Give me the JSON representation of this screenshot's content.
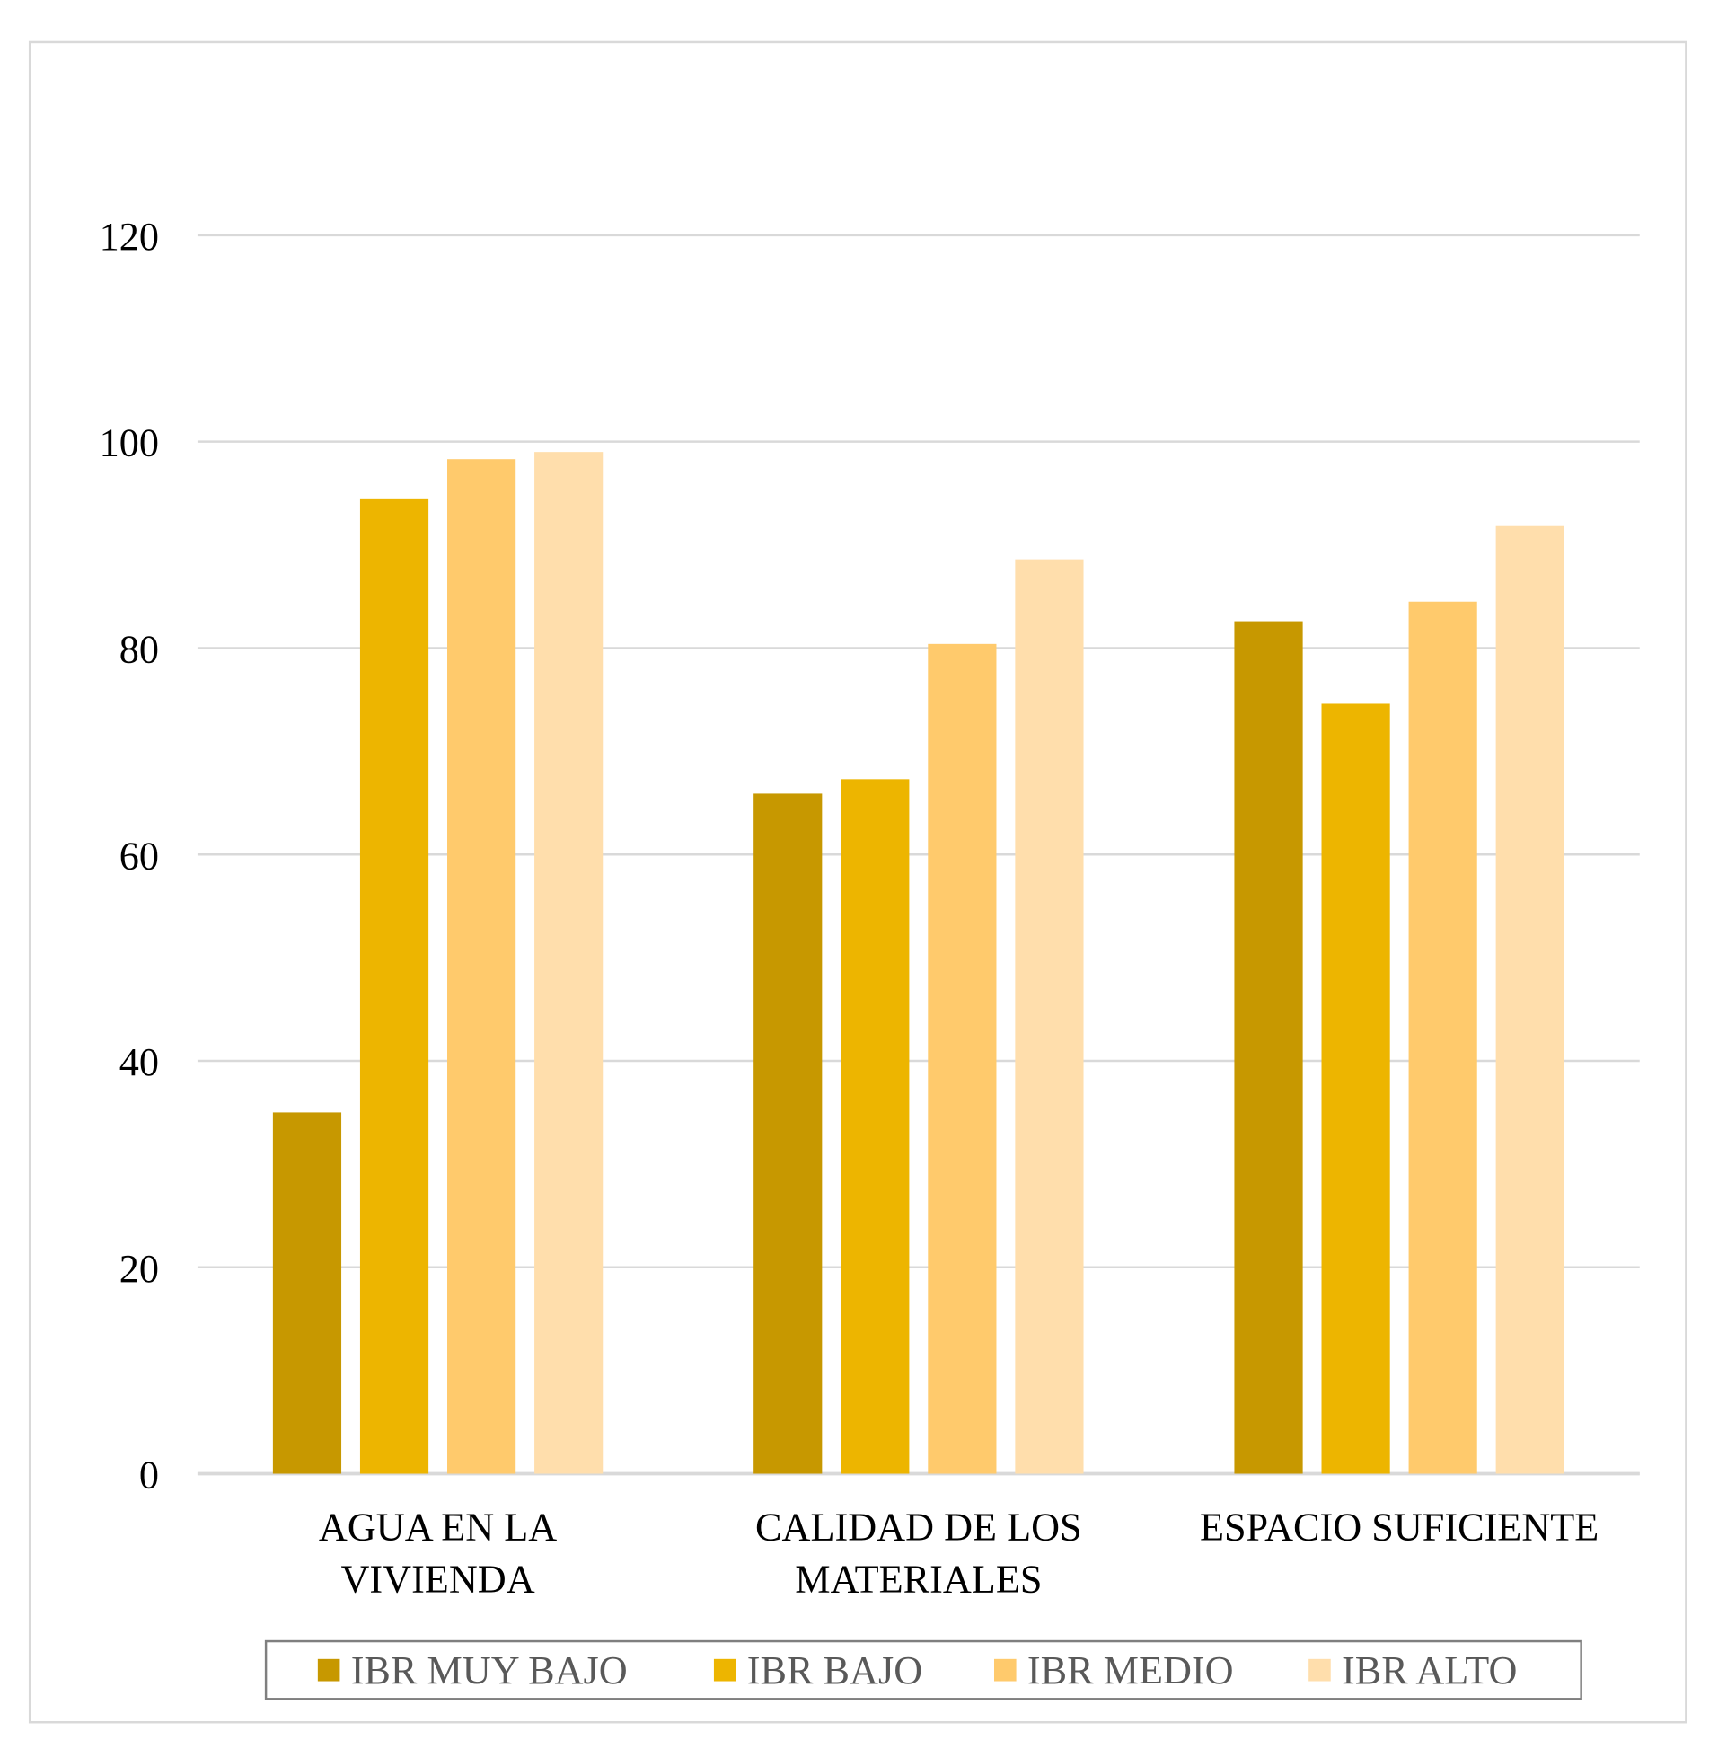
{
  "chart_data": {
    "type": "bar",
    "title": "",
    "xlabel": "",
    "ylabel": "",
    "ylim": [
      0,
      120
    ],
    "yticks": [
      0,
      20,
      40,
      60,
      80,
      100,
      120
    ],
    "ytick_labels": [
      "0",
      "20",
      "40",
      "60",
      "80",
      "100",
      "120"
    ],
    "grid": true,
    "legend_position": "bottom",
    "categories": [
      [
        "AGUA EN LA",
        "VIVIENDA"
      ],
      [
        "CALIDAD DE LOS",
        "MATERIALES"
      ],
      [
        "ESPACIO SUFICIENTE"
      ]
    ],
    "series": [
      {
        "name": "IBR MUY BAJO",
        "color": "#C79800",
        "values": [
          35,
          65.9,
          82.6
        ]
      },
      {
        "name": "IBR BAJO",
        "color": "#EDB500",
        "values": [
          94.5,
          67.3,
          74.6
        ]
      },
      {
        "name": "IBR MEDIO",
        "color": "#FFCA6C",
        "values": [
          98.3,
          80.4,
          84.5
        ]
      },
      {
        "name": "IBR ALTO",
        "color": "#FFDEAC",
        "values": [
          99.0,
          88.6,
          91.9
        ]
      }
    ]
  }
}
